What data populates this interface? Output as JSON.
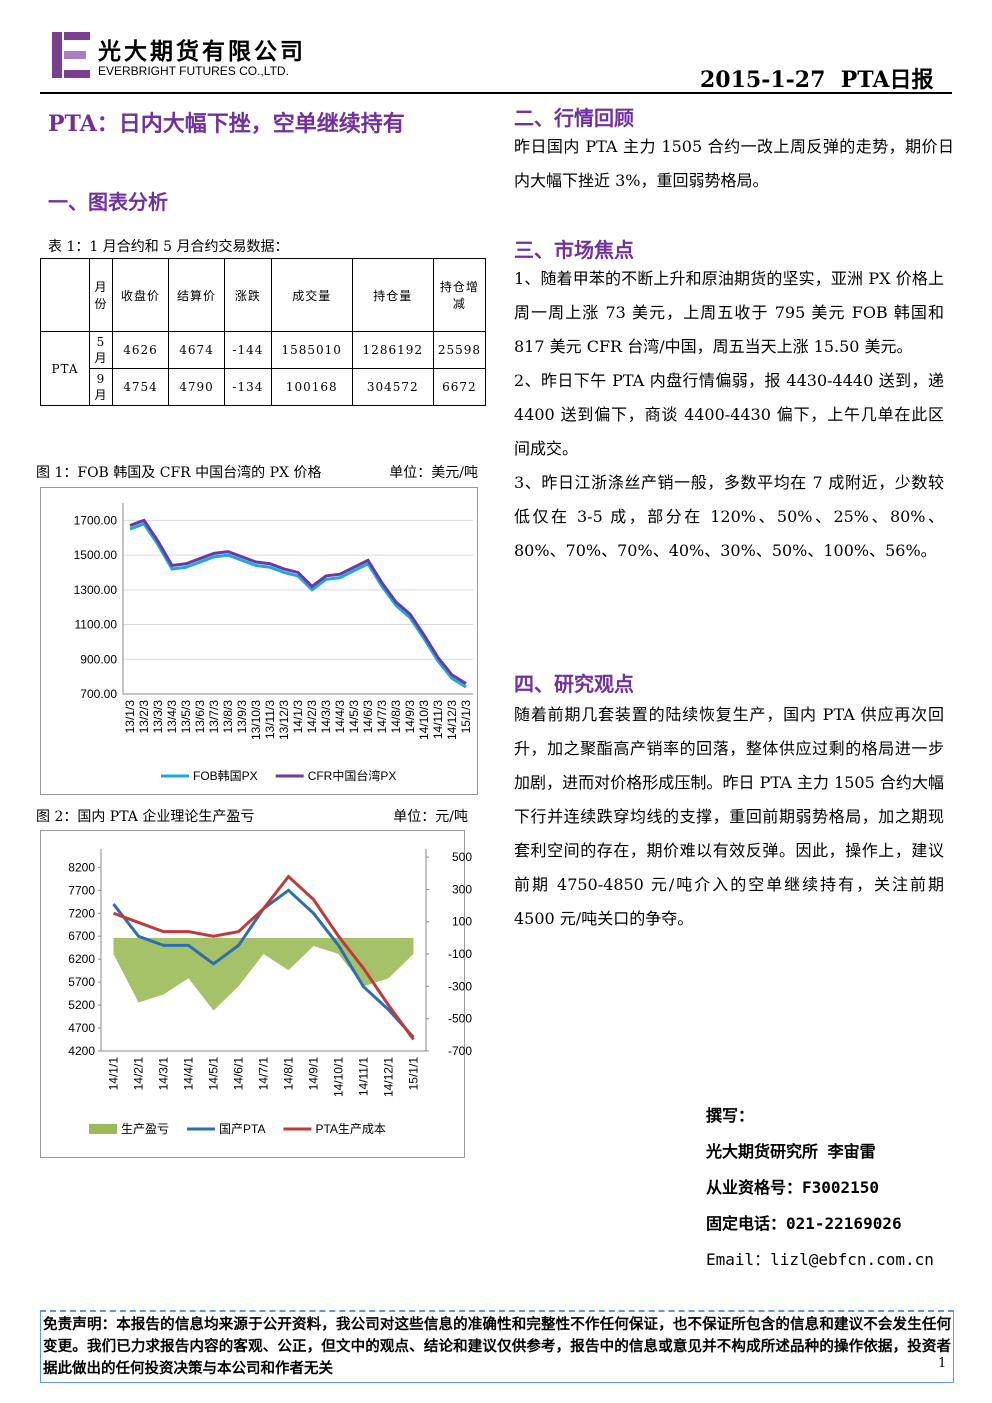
{
  "header": {
    "company_cn": "光大期货有限公司",
    "company_en": "EVERBRIGHT FUTURES CO.,LTD.",
    "date": "2015-1-27",
    "report": "PTA日报"
  },
  "title": "PTA：日内大幅下挫，空单继续持有",
  "section1": "一、图表分析",
  "table_caption": "表 1：1 月合约和 5 月合约交易数据：",
  "table": {
    "product": "PTA",
    "header": [
      "月份",
      "收盘价",
      "结算价",
      "涨跌",
      "成交量",
      "持仓量",
      "持仓增减"
    ],
    "rows": [
      [
        "5 月",
        4626,
        4674,
        -144,
        1585010,
        1286192,
        25598
      ],
      [
        "9 月",
        4754,
        4790,
        -134,
        100168,
        304572,
        6672
      ]
    ]
  },
  "chart_data": [
    {
      "type": "line",
      "title": "图 1：FOB 韩国及 CFR 中国台湾的 PX 价格",
      "unit": "单位：美元/吨",
      "categories": [
        "13/1/3",
        "13/2/3",
        "13/3/3",
        "13/4/3",
        "13/5/3",
        "13/6/3",
        "13/7/3",
        "13/8/3",
        "13/9/3",
        "13/10/3",
        "13/11/3",
        "13/12/3",
        "14/1/3",
        "14/2/3",
        "14/3/3",
        "14/4/3",
        "14/5/3",
        "14/6/3",
        "14/7/3",
        "14/8/3",
        "14/9/3",
        "14/10/3",
        "14/11/3",
        "14/12/3",
        "15/1/3"
      ],
      "ylim": [
        700,
        1800
      ],
      "yticks": [
        {
          "value": 700,
          "label": "700.00"
        },
        {
          "value": 900,
          "label": "900.00"
        },
        {
          "value": 1100,
          "label": "1100.00"
        },
        {
          "value": 1300,
          "label": "1300.00"
        },
        {
          "value": 1500,
          "label": "1500.00"
        },
        {
          "value": 1700,
          "label": "1700.00"
        }
      ],
      "grid": true,
      "series": [
        {
          "name": "FOB韩国PX",
          "color": "#1fa8e0",
          "values": [
            1650,
            1680,
            1560,
            1420,
            1430,
            1460,
            1490,
            1500,
            1470,
            1440,
            1430,
            1400,
            1380,
            1300,
            1360,
            1370,
            1410,
            1450,
            1320,
            1210,
            1140,
            1020,
            890,
            790,
            740
          ]
        },
        {
          "name": "CFR中国台湾PX",
          "color": "#6a3aa0",
          "values": [
            1670,
            1700,
            1580,
            1440,
            1450,
            1480,
            1510,
            1520,
            1490,
            1460,
            1450,
            1420,
            1400,
            1320,
            1380,
            1390,
            1430,
            1470,
            1340,
            1230,
            1160,
            1040,
            910,
            810,
            760
          ]
        }
      ]
    },
    {
      "type": "line",
      "title": "图 2：国内 PTA 企业理论生产盈亏",
      "unit": "单位：元/吨",
      "categories": [
        "14/1/1",
        "14/2/1",
        "14/3/1",
        "14/4/1",
        "14/5/1",
        "14/6/1",
        "14/7/1",
        "14/8/1",
        "14/9/1",
        "14/10/1",
        "14/11/1",
        "14/12/1",
        "15/1/1"
      ],
      "ylim": [
        4200,
        8600
      ],
      "yticks": [
        4200,
        4700,
        5200,
        5700,
        6200,
        6700,
        7200,
        7700,
        8200
      ],
      "y2lim": [
        -700,
        550
      ],
      "y2ticks": [
        -700,
        -500,
        -300,
        -100,
        100,
        300,
        500
      ],
      "series": [
        {
          "name": "生产盈亏",
          "color": "#9bbb59",
          "axis": "y2",
          "style": "area",
          "values": [
            -100,
            -400,
            -350,
            -250,
            -450,
            -300,
            -100,
            -200,
            -50,
            -100,
            -300,
            -250,
            -100
          ]
        },
        {
          "name": "国产PTA",
          "color": "#2e6db3",
          "values": [
            7400,
            6700,
            6500,
            6500,
            6100,
            6500,
            7300,
            7700,
            7200,
            6500,
            5600,
            5100,
            4500
          ]
        },
        {
          "name": "PTA生产成本",
          "color": "#c0393b",
          "values": [
            7200,
            7000,
            6800,
            6800,
            6700,
            6800,
            7300,
            8000,
            7500,
            6700,
            6000,
            5200,
            4450
          ]
        }
      ]
    }
  ],
  "section2": "二、行情回顾",
  "p2": "昨日国内 PTA 主力 1505 合约一改上周反弹的走势，期价日内大幅下挫近 3%，重回弱势格局。",
  "section3": "三、市场焦点",
  "p3": [
    "1、随着甲苯的不断上升和原油期货的坚实，亚洲 PX 价格上周一周上涨 73 美元，上周五收于 795 美元 FOB 韩国和 817 美元 CFR 台湾/中国，周五当天上涨 15.50 美元。",
    "2、昨日下午 PTA 内盘行情偏弱，报 4430-4440 送到，递 4400 送到偏下，商谈 4400-4430 偏下，上午几单在此区间成交。",
    "3、昨日江浙涤丝产销一般，多数平均在 7 成附近，少数较低仅在 3-5 成，部分在 120%、50%、25%、80%、80%、70%、70%、40%、30%、50%、100%、56%。"
  ],
  "section4": "四、研究观点",
  "p4": "随着前期几套装置的陆续恢复生产，国内 PTA 供应再次回升，加之聚酯高产销率的回落，整体供应过剩的格局进一步加剧，进而对价格形成压制。昨日 PTA 主力 1505 合约大幅下行并连续跌穿均线的支撑，重回前期弱势格局，加之期现套利空间的存在，期价难以有效反弹。因此，操作上，建议前期 4750-4850 元/吨介入的空单继续持有，关注前期 4500 元/吨关口的争夺。",
  "author": [
    "撰写：",
    "光大期货研究所 李宙雷",
    "从业资格号：F3002150",
    "固定电话：021-22169026",
    "Email：lizl@ebfcn.com.cn"
  ],
  "disclaimer": "免责声明：本报告的信息均来源于公开资料，我公司对这些信息的准确性和完整性不作任何保证，也不保证所包含的信息和建议不会发生任何变更。我们已力求报告内容的客观、公正，但文中的观点、结论和建议仅供参考，报告中的信息或意见并不构成所述品种的操作依据，投资者据此做出的任何投资决策与本公司和作者无关",
  "page": "1"
}
